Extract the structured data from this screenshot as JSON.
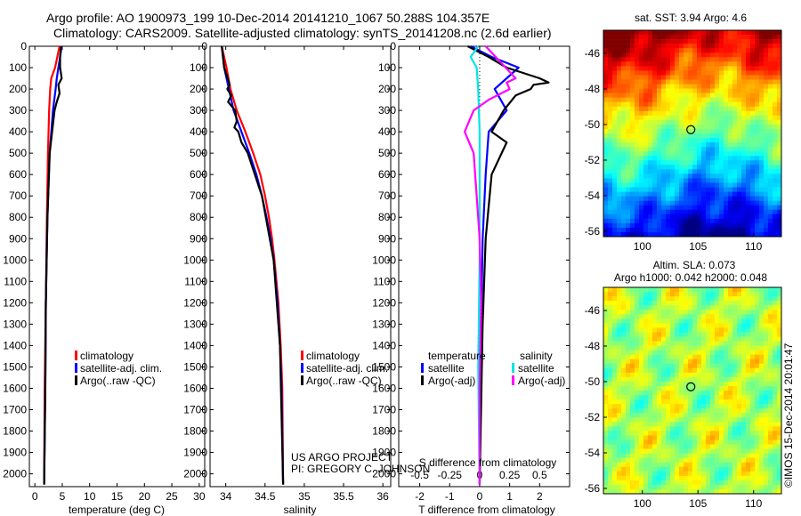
{
  "header": {
    "line1": "Argo profile: AO 1900973_199 10-Dec-2014 20141210_1067 50.288S 104.357E",
    "line2": "Climatology: CARS2009. Satellite-adjusted climatology: synTS_20141208.nc (2.6d earlier)"
  },
  "credits": {
    "project": "US ARGO PROJECT",
    "pi": "PI: GREGORY C. JOHNSON",
    "imos": "©IMOS 15-Dec-2014 20:01:47"
  },
  "depth_ticks": [
    "0",
    "100",
    "200",
    "300",
    "400",
    "500",
    "600",
    "700",
    "800",
    "900",
    "1000",
    "1100",
    "1200",
    "1300",
    "1400",
    "1500",
    "1600",
    "1700",
    "1800",
    "1900",
    "2000"
  ],
  "colors": {
    "climatology": "#ff0000",
    "satellite": "#0000ff",
    "argo": "#000000",
    "sal_satellite": "#00e5e5",
    "sal_argo": "#ff00ff"
  },
  "chart_data": [
    {
      "type": "line",
      "xlabel": "temperature (deg C)",
      "xlim": [
        -1,
        31
      ],
      "ylim": [
        2060,
        0
      ],
      "xticks": [
        "0",
        "5",
        "10",
        "15",
        "20",
        "25",
        "30"
      ],
      "xtick_values": [
        0,
        5,
        10,
        15,
        20,
        25,
        30
      ],
      "legend": [
        "climatology",
        "satellite-adj. clim.",
        "Argo(..raw -QC)"
      ],
      "series": [
        {
          "name": "climatology",
          "color": "#ff0000",
          "depth": [
            0,
            50,
            100,
            150,
            200,
            300,
            500,
            800,
            1200,
            1600,
            2050
          ],
          "x": [
            4.5,
            4.1,
            3.7,
            3.0,
            2.8,
            2.6,
            2.4,
            2.2,
            2.0,
            1.8,
            1.7
          ]
        },
        {
          "name": "satellite-adj. clim.",
          "color": "#0000ff",
          "depth": [
            0,
            50,
            100,
            150,
            200,
            300,
            500,
            800,
            1200,
            1600,
            2050
          ],
          "x": [
            4.9,
            4.6,
            4.3,
            4.0,
            3.8,
            3.3,
            2.7,
            2.3,
            2.0,
            1.9,
            1.7
          ]
        },
        {
          "name": "Argo(..raw -QC)",
          "color": "#000000",
          "depth": [
            0,
            50,
            100,
            150,
            180,
            220,
            260,
            300,
            500,
            800,
            1200,
            1600,
            2050
          ],
          "x": [
            4.8,
            4.6,
            4.6,
            4.9,
            4.3,
            4.5,
            4.0,
            3.6,
            2.7,
            2.3,
            2.0,
            1.9,
            1.7
          ]
        }
      ]
    },
    {
      "type": "line",
      "xlabel": "salinity",
      "xlim": [
        33.8,
        36.1
      ],
      "ylim": [
        2060,
        0
      ],
      "xticks": [
        "34",
        "34.5",
        "35",
        "35.5",
        "36"
      ],
      "xtick_values": [
        34,
        34.5,
        35,
        35.5,
        36
      ],
      "legend": [
        "climatology",
        "satellite-adj. clim.",
        "Argo(..raw -QC)"
      ],
      "series": [
        {
          "name": "climatology",
          "color": "#ff0000",
          "depth": [
            0,
            100,
            200,
            300,
            400,
            500,
            600,
            700,
            800,
            900,
            1000,
            1200,
            1400,
            1600,
            2050
          ],
          "x": [
            33.95,
            34.01,
            34.06,
            34.14,
            34.25,
            34.35,
            34.44,
            34.5,
            34.55,
            34.59,
            34.62,
            34.67,
            34.7,
            34.72,
            34.73
          ]
        },
        {
          "name": "satellite-adj. clim.",
          "color": "#0000ff",
          "depth": [
            0,
            100,
            200,
            300,
            400,
            500,
            600,
            700,
            800,
            900,
            1000,
            1200,
            1400,
            1600,
            2050
          ],
          "x": [
            33.95,
            33.98,
            34.04,
            34.1,
            34.2,
            34.3,
            34.39,
            34.46,
            34.52,
            34.57,
            34.61,
            34.66,
            34.69,
            34.71,
            34.73
          ]
        },
        {
          "name": "Argo(..raw -QC)",
          "color": "#000000",
          "depth": [
            0,
            100,
            180,
            200,
            230,
            260,
            300,
            350,
            380,
            400,
            450,
            500,
            700,
            1000,
            1400,
            2050
          ],
          "x": [
            33.95,
            33.98,
            34.05,
            34.02,
            34.07,
            34.03,
            34.12,
            34.14,
            34.11,
            34.16,
            34.2,
            34.28,
            34.46,
            34.61,
            34.69,
            34.73
          ]
        }
      ]
    },
    {
      "type": "line",
      "xlabel": "T difference from climatology",
      "xlabel2": "S difference from climatology",
      "xlim": [
        -2.7,
        3.0
      ],
      "ylim": [
        2060,
        0
      ],
      "xticks": [
        "-2",
        "-1",
        "0",
        "1",
        "2"
      ],
      "xtick_values": [
        -2,
        -1,
        0,
        1,
        2
      ],
      "sticks": [
        "-0.5",
        "-0.25",
        "0",
        "0.25",
        "0.5"
      ],
      "stick_values": [
        -2,
        -1,
        0,
        1,
        2
      ],
      "legend_groups": [
        {
          "title": "temperature",
          "items": [
            "satellite",
            "Argo(-adj)"
          ]
        },
        {
          "title": "salinity",
          "items": [
            "satellite",
            "Argo(-adj)"
          ]
        }
      ],
      "series": [
        {
          "name": "temperature satellite",
          "color": "#0000ff",
          "depth": [
            0,
            50,
            100,
            150,
            200,
            300,
            400,
            600,
            900,
            1300,
            2050
          ],
          "x": [
            -0.3,
            0.4,
            1.3,
            0.9,
            0.5,
            0.9,
            0.3,
            0.2,
            0.1,
            0.05,
            0
          ]
        },
        {
          "name": "temperature Argo(-adj)",
          "color": "#000000",
          "depth": [
            0,
            50,
            100,
            150,
            170,
            180,
            200,
            230,
            300,
            400,
            450,
            600,
            900,
            1300,
            2050
          ],
          "x": [
            -0.4,
            0.3,
            0.9,
            2.0,
            2.3,
            1.8,
            1.7,
            1.2,
            0.8,
            0.4,
            0.9,
            0.4,
            0.2,
            0.1,
            0
          ]
        },
        {
          "name": "salinity satellite",
          "color": "#00e5e5",
          "depth": [
            0,
            50,
            100,
            200,
            400,
            700,
            1000,
            1500,
            2050
          ],
          "x": [
            -0.05,
            -0.3,
            -0.1,
            -0.05,
            0,
            0,
            0,
            -0.05,
            0
          ]
        },
        {
          "name": "salinity Argo(-adj)",
          "color": "#ff00ff",
          "depth": [
            0,
            150,
            170,
            200,
            250,
            300,
            400,
            500,
            700,
            900,
            1200,
            1600,
            2050
          ],
          "x": [
            0.2,
            1.2,
            0.9,
            1.0,
            0.3,
            -0.2,
            -0.5,
            -0.2,
            -0.1,
            0,
            0.05,
            0,
            0
          ]
        }
      ]
    },
    {
      "type": "heatmap",
      "title": "sat. SST: 3.94  Argo: 4.6",
      "xticks": [
        "100",
        "105",
        "110"
      ],
      "xtick_values": [
        100,
        105,
        110
      ],
      "yticks": [
        "-46",
        "-48",
        "-50",
        "-52",
        "-54",
        "-56"
      ],
      "ytick_values": [
        -46,
        -48,
        -50,
        -52,
        -54,
        -56
      ],
      "xlim": [
        96.5,
        112.5
      ],
      "ylim": [
        -56.3,
        -44.7
      ],
      "marker": {
        "lon": 104.357,
        "lat": -50.288
      }
    },
    {
      "type": "heatmap",
      "title": "Altim. SLA: 0.073",
      "subtitle": "Argo h1000: 0.042  h2000: 0.048",
      "xticks": [
        "100",
        "105",
        "110"
      ],
      "xtick_values": [
        100,
        105,
        110
      ],
      "yticks": [
        "-46",
        "-48",
        "-50",
        "-52",
        "-54",
        "-56"
      ],
      "ytick_values": [
        -46,
        -48,
        -50,
        -52,
        -54,
        -56
      ],
      "xlim": [
        96.5,
        112.5
      ],
      "ylim": [
        -56.3,
        -44.7
      ],
      "marker": {
        "lon": 104.357,
        "lat": -50.288
      }
    }
  ]
}
